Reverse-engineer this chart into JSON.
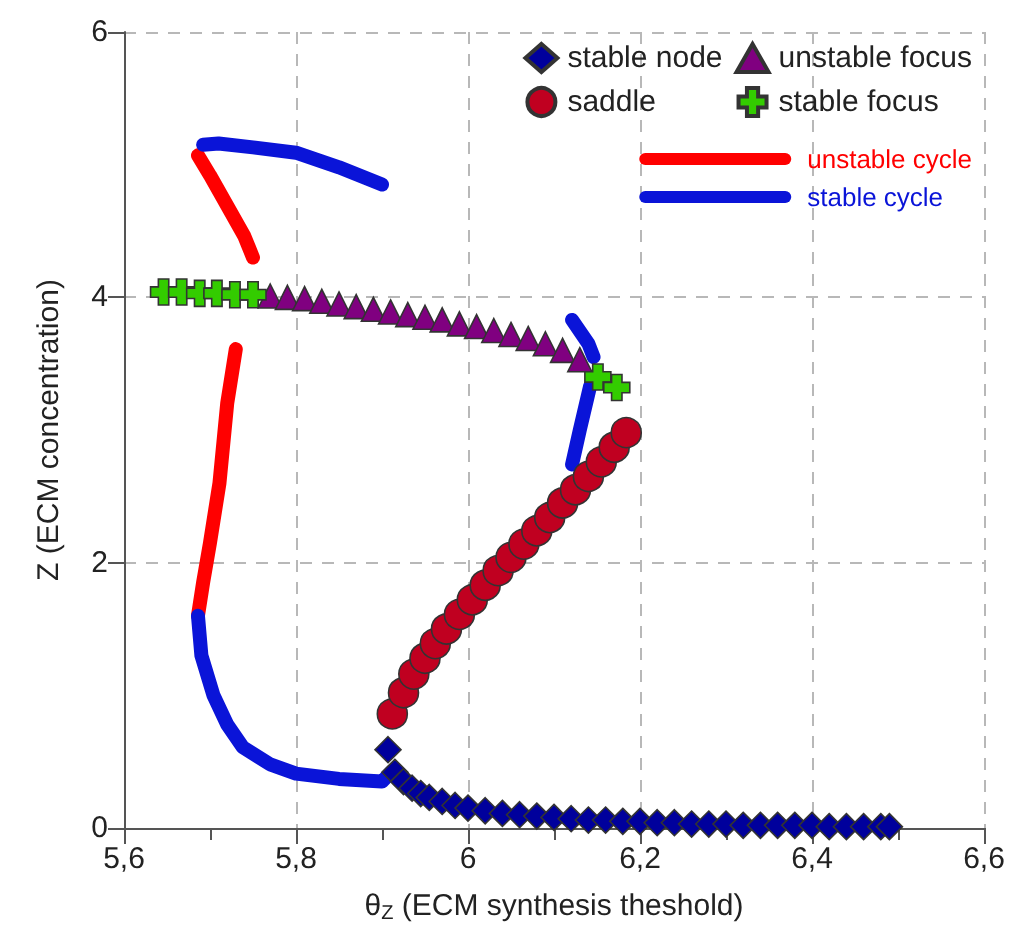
{
  "chart_data": {
    "type": "scatter",
    "xlabel": "θ$_{Z}$ (ECM synthesis theshold)",
    "ylabel": "Z (ECM concentration)",
    "xlim": [
      5.6,
      6.6
    ],
    "ylim": [
      0,
      6
    ],
    "xticks": [
      {
        "value": 5.6,
        "label": "5,6"
      },
      {
        "value": 5.7,
        "label": null
      },
      {
        "value": 5.8,
        "label": "5,8"
      },
      {
        "value": 5.9,
        "label": null
      },
      6,
      {
        "value": 6.1,
        "label": null
      },
      {
        "value": 6.2,
        "label": "6,2"
      },
      {
        "value": 6.3,
        "label": null
      },
      {
        "value": 6.4,
        "label": "6,4"
      },
      {
        "value": 6.5,
        "label": null
      },
      {
        "value": 6.6,
        "label": "6,6"
      }
    ],
    "yticks": [
      0,
      2,
      4,
      6
    ],
    "grid": true,
    "legend": "top right",
    "series": [
      {
        "name": "stable node",
        "marker": "diamond",
        "color": "#00009c",
        "x": [
          5.907,
          5.915,
          5.925,
          5.935,
          5.945,
          5.955,
          5.97,
          5.985,
          6.0,
          6.02,
          6.04,
          6.06,
          6.08,
          6.1,
          6.12,
          6.14,
          6.16,
          6.18,
          6.2,
          6.22,
          6.24,
          6.26,
          6.28,
          6.3,
          6.32,
          6.34,
          6.36,
          6.38,
          6.4,
          6.42,
          6.44,
          6.46,
          6.48,
          6.49
        ],
        "values": [
          0.59,
          0.42,
          0.35,
          0.3,
          0.26,
          0.23,
          0.2,
          0.17,
          0.15,
          0.13,
          0.11,
          0.1,
          0.09,
          0.08,
          0.07,
          0.06,
          0.06,
          0.05,
          0.05,
          0.04,
          0.04,
          0.03,
          0.03,
          0.03,
          0.02,
          0.02,
          0.02,
          0.02,
          0.02,
          0.01,
          0.01,
          0.01,
          0.01,
          0.01
        ]
      },
      {
        "name": "saddle",
        "marker": "circle",
        "color": "#c00020",
        "x": [
          5.912,
          5.925,
          5.937,
          5.95,
          5.962,
          5.975,
          5.99,
          6.005,
          6.02,
          6.035,
          6.05,
          6.065,
          6.08,
          6.095,
          6.11,
          6.125,
          6.14,
          6.155,
          6.17,
          6.184
        ],
        "values": [
          0.86,
          1.02,
          1.16,
          1.28,
          1.39,
          1.5,
          1.61,
          1.72,
          1.83,
          1.94,
          2.04,
          2.14,
          2.24,
          2.34,
          2.45,
          2.55,
          2.65,
          2.76,
          2.87,
          2.98
        ]
      },
      {
        "name": "unstable focus",
        "marker": "triangle",
        "color": "#800080",
        "x": [
          5.77,
          5.79,
          5.81,
          5.83,
          5.85,
          5.87,
          5.89,
          5.91,
          5.93,
          5.95,
          5.97,
          5.99,
          6.01,
          6.03,
          6.05,
          6.07,
          6.09,
          6.11,
          6.13
        ],
        "values": [
          4.01,
          4.0,
          3.99,
          3.97,
          3.95,
          3.93,
          3.91,
          3.89,
          3.87,
          3.85,
          3.83,
          3.8,
          3.78,
          3.75,
          3.72,
          3.69,
          3.65,
          3.6,
          3.53
        ]
      },
      {
        "name": "stable focus",
        "marker": "cross",
        "color": "#33cc00",
        "x": [
          5.646,
          5.667,
          5.688,
          5.708,
          5.729,
          5.75,
          6.151,
          6.173
        ],
        "values": [
          4.04,
          4.04,
          4.03,
          4.03,
          4.02,
          4.02,
          3.4,
          3.32
        ]
      },
      {
        "name": "unstable cycle",
        "type": "line",
        "marker": "none",
        "line_style": "solid",
        "color": "#ff0000",
        "x": [
          5.686,
          5.7,
          5.72,
          5.74,
          5.75,
          null,
          5.73,
          5.72,
          5.711,
          5.7,
          5.692,
          5.686
        ],
        "values": [
          5.07,
          4.92,
          4.69,
          4.46,
          4.3,
          null,
          3.61,
          3.2,
          2.6,
          2.15,
          1.85,
          1.6
        ]
      },
      {
        "name": "stable cycle",
        "type": "line",
        "marker": "none",
        "line_style": "solid",
        "color": "#0a14d8",
        "x": [
          5.692,
          5.71,
          5.75,
          5.8,
          5.85,
          5.9,
          null,
          5.686,
          5.69,
          5.704,
          5.72,
          5.738,
          5.77,
          5.8,
          5.85,
          5.9,
          5.912,
          null,
          6.121,
          6.14,
          6.146,
          null,
          6.142,
          6.13,
          6.121
        ],
        "values": [
          5.15,
          5.16,
          5.13,
          5.09,
          4.98,
          4.85,
          null,
          1.6,
          1.3,
          1.0,
          0.78,
          0.61,
          0.48,
          0.41,
          0.37,
          0.35,
          0.43,
          null,
          3.83,
          3.65,
          3.55,
          null,
          3.33,
          3.0,
          2.74
        ]
      }
    ]
  }
}
